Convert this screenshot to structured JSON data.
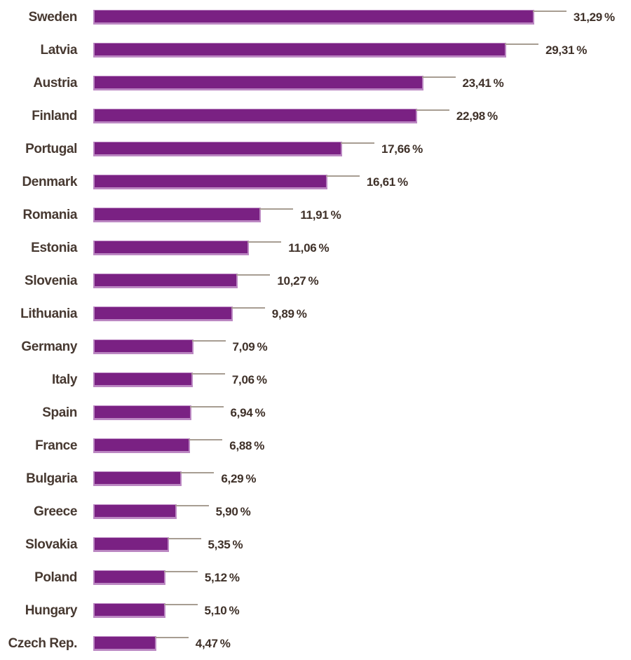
{
  "chart_data": {
    "type": "bar",
    "orientation": "horizontal",
    "grid": false,
    "legend": false,
    "xlim": [
      0,
      33
    ],
    "unit": "%",
    "decimal_separator": ",",
    "categories": [
      "Sweden",
      "Latvia",
      "Austria",
      "Finland",
      "Portugal",
      "Denmark",
      "Romania",
      "Estonia",
      "Slovenia",
      "Lithuania",
      "Germany",
      "Italy",
      "Spain",
      "France",
      "Bulgaria",
      "Greece",
      "Slovakia",
      "Poland",
      "Hungary",
      "Czech Rep."
    ],
    "values": [
      31.29,
      29.31,
      23.41,
      22.98,
      17.66,
      16.61,
      11.91,
      11.06,
      10.27,
      9.89,
      7.09,
      7.06,
      6.94,
      6.88,
      6.29,
      5.9,
      5.35,
      5.12,
      5.1,
      4.47
    ],
    "value_labels": [
      "31,29 %",
      "29,31 %",
      "23,41 %",
      "22,98 %",
      "17,66 %",
      "16,61 %",
      "11,91 %",
      "11,06 %",
      "10,27 %",
      "9,89 %",
      "7,09 %",
      "7,06 %",
      "6,94 %",
      "6,88 %",
      "6,29 %",
      "5,90 %",
      "5,35 %",
      "5,12 %",
      "5,10 %",
      "4,47 %"
    ],
    "colors": {
      "bar_fill": "#7a2183",
      "bar_edge": "#bb87c2",
      "category_label": "#473931",
      "value_label": "#3f3129",
      "leader_line": "#a79d92",
      "background": "#ffffff"
    }
  }
}
